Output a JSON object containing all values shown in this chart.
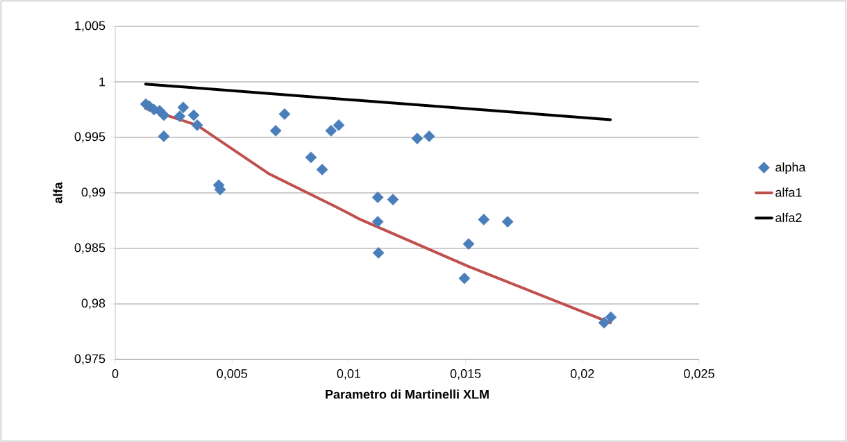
{
  "chart_data": {
    "type": "scatter",
    "xlabel": "Parametro di Martinelli XLM",
    "ylabel": "alfa",
    "xlim": [
      0,
      0.025
    ],
    "ylim": [
      0.975,
      1.005
    ],
    "xticks": [
      0,
      {
        "value": 0.005,
        "label": "0,005"
      },
      {
        "value": 0.01,
        "label": "0,01"
      },
      {
        "value": 0.015,
        "label": "0,015"
      },
      {
        "value": 0.02,
        "label": "0,02"
      },
      {
        "value": 0.025,
        "label": "0,025"
      }
    ],
    "yticks": [
      {
        "value": 0.975,
        "label": "0,975"
      },
      {
        "value": 0.98,
        "label": "0,98"
      },
      {
        "value": 0.985,
        "label": "0,985"
      },
      {
        "value": 0.99,
        "label": "0,99"
      },
      {
        "value": 0.995,
        "label": "0,995"
      },
      {
        "value": 1,
        "label": "1"
      },
      {
        "value": 1.005,
        "label": "1,005"
      }
    ],
    "grid": "y",
    "legend": "right",
    "series": [
      {
        "name": "alpha",
        "marker": "diamond",
        "color": "#4a7ebb",
        "x": [
          0.00131,
          0.00146,
          0.00166,
          0.0019,
          0.00208,
          0.00208,
          0.00276,
          0.00291,
          0.00336,
          0.00351,
          0.00443,
          0.00449,
          0.00687,
          0.00725,
          0.00838,
          0.00886,
          0.00924,
          0.00957,
          0.01124,
          0.01189,
          0.01124,
          0.01293,
          0.01344,
          0.01127,
          0.01513,
          0.01578,
          0.0168,
          0.01495,
          0.02093,
          0.02122
        ],
        "values": [
          0.998,
          0.9978,
          0.9975,
          0.9974,
          0.997,
          0.9951,
          0.9969,
          0.9977,
          0.997,
          0.9961,
          0.9907,
          0.9903,
          0.9956,
          0.9971,
          0.9932,
          0.9921,
          0.9956,
          0.9961,
          0.9896,
          0.9894,
          0.9874,
          0.9949,
          0.9951,
          0.9846,
          0.9854,
          0.9876,
          0.9874,
          0.9823,
          0.9783,
          0.9788
        ]
      },
      {
        "name": "alfa1",
        "type": "line",
        "color": "#c0504d",
        "x": [
          0.0013,
          0.0035,
          0.0066,
          0.0094,
          0.0105,
          0.0151,
          0.0212
        ],
        "values": [
          0.9976,
          0.9961,
          0.9917,
          0.9888,
          0.9876,
          0.9834,
          0.9783
        ]
      },
      {
        "name": "alfa2",
        "type": "line",
        "color": "#000000",
        "x": [
          0.0013,
          0.0212
        ],
        "values": [
          0.9998,
          0.9966
        ]
      }
    ]
  }
}
